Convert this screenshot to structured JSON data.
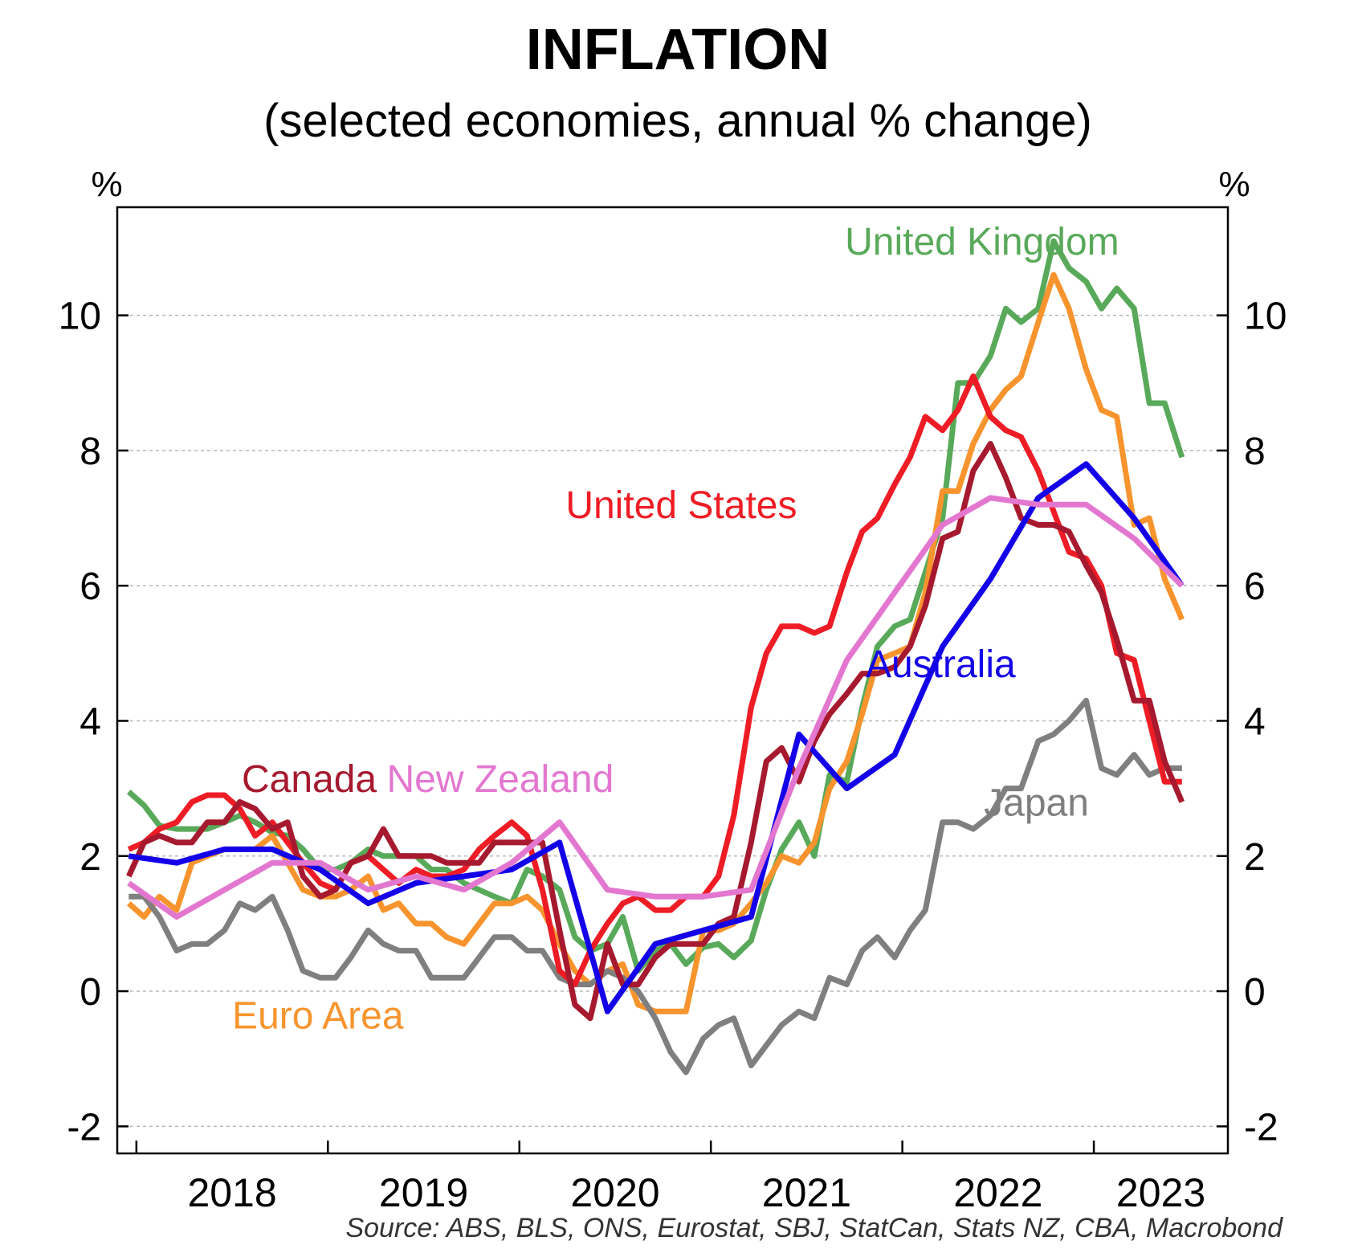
{
  "chart_data": {
    "type": "line",
    "title": "INFLATION",
    "subtitle": "(selected economies, annual % change)",
    "ylabel_left": "%",
    "ylabel_right": "%",
    "ylim": [
      -2.4,
      11.6
    ],
    "yticks": [
      -2,
      0,
      2,
      4,
      6,
      8,
      10
    ],
    "xlim": [
      2017.9,
      2023.7
    ],
    "xticks": [
      2018,
      2019,
      2020,
      2021,
      2022,
      2023
    ],
    "xtick_labels": [
      "2018",
      "2019",
      "2020",
      "2021",
      "2022",
      "2023"
    ],
    "source": "Source: ABS, BLS, ONS, Eurostat, SBJ, StatCan, Stats NZ, CBA, Macrobond",
    "grid": "horizontal dashed",
    "series": [
      {
        "name": "United Kingdom",
        "color": "#59a95a",
        "label_pos": [
          2021.7,
          10.9
        ],
        "label_anchor": "start",
        "x": [
          2017.96,
          2018.04,
          2018.12,
          2018.21,
          2018.29,
          2018.37,
          2018.46,
          2018.54,
          2018.62,
          2018.71,
          2018.79,
          2018.87,
          2018.96,
          2019.04,
          2019.12,
          2019.21,
          2019.29,
          2019.37,
          2019.46,
          2019.54,
          2019.62,
          2019.71,
          2019.79,
          2019.87,
          2019.96,
          2020.04,
          2020.12,
          2020.21,
          2020.29,
          2020.37,
          2020.46,
          2020.54,
          2020.62,
          2020.71,
          2020.79,
          2020.87,
          2020.96,
          2021.04,
          2021.12,
          2021.21,
          2021.29,
          2021.37,
          2021.46,
          2021.54,
          2021.62,
          2021.71,
          2021.79,
          2021.87,
          2021.96,
          2022.04,
          2022.12,
          2022.21,
          2022.29,
          2022.37,
          2022.46,
          2022.54,
          2022.62,
          2022.71,
          2022.79,
          2022.87,
          2022.96,
          2023.04,
          2023.12,
          2023.21,
          2023.29,
          2023.37,
          2023.46
        ],
        "y": [
          2.95,
          2.75,
          2.45,
          2.4,
          2.4,
          2.4,
          2.5,
          2.6,
          2.5,
          2.35,
          2.3,
          2.1,
          1.8,
          1.8,
          1.9,
          2.1,
          2.0,
          2.0,
          2.0,
          1.8,
          1.8,
          1.6,
          1.5,
          1.4,
          1.3,
          1.8,
          1.7,
          1.5,
          0.8,
          0.6,
          0.7,
          1.1,
          0.3,
          0.6,
          0.7,
          0.4,
          0.65,
          0.7,
          0.5,
          0.75,
          1.5,
          2.1,
          2.5,
          2.0,
          3.2,
          3.1,
          4.2,
          5.1,
          5.4,
          5.5,
          6.2,
          7.0,
          9.0,
          9.0,
          9.4,
          10.1,
          9.9,
          10.1,
          11.1,
          10.7,
          10.5,
          10.1,
          10.4,
          10.1,
          8.7,
          8.7,
          7.9
        ]
      },
      {
        "name": "Euro Area",
        "color": "#f7942e",
        "label_pos": [
          2018.5,
          -0.55
        ],
        "label_anchor": "start",
        "x": [
          2017.96,
          2018.04,
          2018.12,
          2018.21,
          2018.29,
          2018.37,
          2018.46,
          2018.54,
          2018.62,
          2018.71,
          2018.79,
          2018.87,
          2018.96,
          2019.04,
          2019.12,
          2019.21,
          2019.29,
          2019.37,
          2019.46,
          2019.54,
          2019.62,
          2019.71,
          2019.79,
          2019.87,
          2019.96,
          2020.04,
          2020.12,
          2020.21,
          2020.29,
          2020.37,
          2020.46,
          2020.54,
          2020.62,
          2020.71,
          2020.79,
          2020.87,
          2020.96,
          2021.04,
          2021.12,
          2021.21,
          2021.29,
          2021.37,
          2021.46,
          2021.54,
          2021.62,
          2021.71,
          2021.79,
          2021.87,
          2021.96,
          2022.04,
          2022.12,
          2022.21,
          2022.29,
          2022.37,
          2022.46,
          2022.54,
          2022.62,
          2022.71,
          2022.79,
          2022.87,
          2022.96,
          2023.04,
          2023.12,
          2023.21,
          2023.29,
          2023.37,
          2023.46
        ],
        "y": [
          1.3,
          1.1,
          1.4,
          1.2,
          1.9,
          2.0,
          2.1,
          2.1,
          2.1,
          2.3,
          1.9,
          1.5,
          1.4,
          1.4,
          1.5,
          1.7,
          1.2,
          1.3,
          1.0,
          1.0,
          0.8,
          0.7,
          1.0,
          1.3,
          1.3,
          1.4,
          1.2,
          0.7,
          0.3,
          0.1,
          0.3,
          0.4,
          -0.2,
          -0.3,
          -0.3,
          -0.3,
          0.9,
          0.9,
          1.0,
          1.3,
          1.6,
          2.0,
          1.9,
          2.2,
          3.0,
          3.4,
          4.1,
          4.9,
          5.0,
          5.1,
          5.9,
          7.4,
          7.4,
          8.1,
          8.6,
          8.9,
          9.1,
          9.9,
          10.6,
          10.1,
          9.2,
          8.6,
          8.5,
          6.9,
          7.0,
          6.1,
          5.5
        ]
      },
      {
        "name": "Japan",
        "color": "#7f7f7f",
        "label_pos": [
          2022.7,
          2.6
        ],
        "label_anchor": "middle",
        "x": [
          2017.96,
          2018.04,
          2018.12,
          2018.21,
          2018.29,
          2018.37,
          2018.46,
          2018.54,
          2018.62,
          2018.71,
          2018.79,
          2018.87,
          2018.96,
          2019.04,
          2019.12,
          2019.21,
          2019.29,
          2019.37,
          2019.46,
          2019.54,
          2019.62,
          2019.71,
          2019.79,
          2019.87,
          2019.96,
          2020.04,
          2020.12,
          2020.21,
          2020.29,
          2020.37,
          2020.46,
          2020.54,
          2020.62,
          2020.71,
          2020.79,
          2020.87,
          2020.96,
          2021.04,
          2021.12,
          2021.21,
          2021.29,
          2021.37,
          2021.46,
          2021.54,
          2021.62,
          2021.71,
          2021.79,
          2021.87,
          2021.96,
          2022.04,
          2022.12,
          2022.21,
          2022.29,
          2022.37,
          2022.46,
          2022.54,
          2022.62,
          2022.71,
          2022.79,
          2022.87,
          2022.96,
          2023.04,
          2023.12,
          2023.21,
          2023.29,
          2023.37,
          2023.46
        ],
        "y": [
          1.4,
          1.4,
          1.1,
          0.6,
          0.7,
          0.7,
          0.9,
          1.3,
          1.2,
          1.4,
          0.9,
          0.3,
          0.2,
          0.2,
          0.5,
          0.9,
          0.7,
          0.6,
          0.6,
          0.2,
          0.2,
          0.2,
          0.5,
          0.8,
          0.8,
          0.6,
          0.6,
          0.2,
          0.1,
          0.1,
          0.3,
          0.2,
          0.0,
          -0.4,
          -0.9,
          -1.2,
          -0.7,
          -0.5,
          -0.4,
          -1.1,
          -0.8,
          -0.5,
          -0.3,
          -0.4,
          0.2,
          0.1,
          0.6,
          0.8,
          0.5,
          0.9,
          1.2,
          2.5,
          2.5,
          2.4,
          2.6,
          3.0,
          3.0,
          3.7,
          3.8,
          4.0,
          4.3,
          3.3,
          3.2,
          3.5,
          3.2,
          3.3,
          3.3
        ]
      },
      {
        "name": "United States",
        "color": "#ee1c25",
        "label_pos": [
          2021.45,
          7.0
        ],
        "label_anchor": "end",
        "x": [
          2017.96,
          2018.04,
          2018.12,
          2018.21,
          2018.29,
          2018.37,
          2018.46,
          2018.54,
          2018.62,
          2018.71,
          2018.79,
          2018.87,
          2018.96,
          2019.04,
          2019.12,
          2019.21,
          2019.29,
          2019.37,
          2019.46,
          2019.54,
          2019.62,
          2019.71,
          2019.79,
          2019.87,
          2019.96,
          2020.04,
          2020.12,
          2020.21,
          2020.29,
          2020.37,
          2020.46,
          2020.54,
          2020.62,
          2020.71,
          2020.79,
          2020.87,
          2020.96,
          2021.04,
          2021.12,
          2021.21,
          2021.29,
          2021.37,
          2021.46,
          2021.54,
          2021.62,
          2021.71,
          2021.79,
          2021.87,
          2021.96,
          2022.04,
          2022.12,
          2022.21,
          2022.29,
          2022.37,
          2022.46,
          2022.54,
          2022.62,
          2022.71,
          2022.79,
          2022.87,
          2022.96,
          2023.04,
          2023.12,
          2023.21,
          2023.29,
          2023.37,
          2023.46
        ],
        "y": [
          2.1,
          2.2,
          2.4,
          2.5,
          2.8,
          2.9,
          2.9,
          2.7,
          2.3,
          2.5,
          2.2,
          1.9,
          1.6,
          1.5,
          1.9,
          2.0,
          1.8,
          1.6,
          1.8,
          1.7,
          1.7,
          1.8,
          2.1,
          2.3,
          2.5,
          2.3,
          1.5,
          0.3,
          0.1,
          0.6,
          1.0,
          1.3,
          1.4,
          1.2,
          1.2,
          1.4,
          1.4,
          1.7,
          2.6,
          4.2,
          5.0,
          5.4,
          5.4,
          5.3,
          5.4,
          6.2,
          6.8,
          7.0,
          7.5,
          7.9,
          8.5,
          8.3,
          8.6,
          9.1,
          8.5,
          8.3,
          8.2,
          7.7,
          7.1,
          6.5,
          6.4,
          6.0,
          5.0,
          4.9,
          4.0,
          3.1,
          3.1
        ]
      },
      {
        "name": "Canada",
        "color": "#a6192e",
        "label_pos": [
          2018.55,
          2.95
        ],
        "label_anchor": "start",
        "x": [
          2017.96,
          2018.04,
          2018.12,
          2018.21,
          2018.29,
          2018.37,
          2018.46,
          2018.54,
          2018.62,
          2018.71,
          2018.79,
          2018.87,
          2018.96,
          2019.04,
          2019.12,
          2019.21,
          2019.29,
          2019.37,
          2019.46,
          2019.54,
          2019.62,
          2019.71,
          2019.79,
          2019.87,
          2019.96,
          2020.04,
          2020.12,
          2020.21,
          2020.29,
          2020.37,
          2020.46,
          2020.54,
          2020.62,
          2020.71,
          2020.79,
          2020.87,
          2020.96,
          2021.04,
          2021.12,
          2021.21,
          2021.29,
          2021.37,
          2021.46,
          2021.54,
          2021.62,
          2021.71,
          2021.79,
          2021.87,
          2021.96,
          2022.04,
          2022.12,
          2022.21,
          2022.29,
          2022.37,
          2022.46,
          2022.54,
          2022.62,
          2022.71,
          2022.79,
          2022.87,
          2022.96,
          2023.04,
          2023.12,
          2023.21,
          2023.29,
          2023.37,
          2023.46
        ],
        "y": [
          1.7,
          2.2,
          2.3,
          2.2,
          2.2,
          2.5,
          2.5,
          2.8,
          2.7,
          2.4,
          2.5,
          1.7,
          1.4,
          1.5,
          1.9,
          2.0,
          2.4,
          2.0,
          2.0,
          2.0,
          1.9,
          1.9,
          1.9,
          2.2,
          2.2,
          2.2,
          2.2,
          0.9,
          -0.2,
          -0.4,
          0.7,
          0.1,
          0.1,
          0.5,
          0.7,
          0.7,
          0.7,
          1.0,
          1.1,
          2.2,
          3.4,
          3.6,
          3.1,
          3.7,
          4.1,
          4.4,
          4.7,
          4.7,
          4.8,
          5.1,
          5.7,
          6.7,
          6.8,
          7.7,
          8.1,
          7.6,
          7.0,
          6.9,
          6.9,
          6.8,
          6.3,
          5.9,
          5.2,
          4.3,
          4.3,
          3.4,
          2.8
        ]
      },
      {
        "name": "Australia",
        "color": "#1400e8",
        "label_pos": [
          2022.2,
          4.65
        ],
        "label_anchor": "middle",
        "x": [
          2017.96,
          2018.21,
          2018.46,
          2018.71,
          2018.96,
          2019.21,
          2019.46,
          2019.71,
          2019.96,
          2020.21,
          2020.46,
          2020.71,
          2020.96,
          2021.21,
          2021.46,
          2021.71,
          2021.96,
          2022.21,
          2022.46,
          2022.71,
          2022.96,
          2023.21,
          2023.46
        ],
        "y": [
          2.0,
          1.9,
          2.1,
          2.1,
          1.8,
          1.3,
          1.6,
          1.7,
          1.8,
          2.2,
          -0.3,
          0.7,
          0.9,
          1.1,
          3.8,
          3.0,
          3.5,
          5.1,
          6.1,
          7.3,
          7.8,
          7.0,
          6.0
        ]
      },
      {
        "name": "New Zealand",
        "color": "#e377d0",
        "label_pos": [
          2019.9,
          2.95
        ],
        "label_anchor": "middle",
        "x": [
          2017.96,
          2018.21,
          2018.46,
          2018.71,
          2018.96,
          2019.21,
          2019.46,
          2019.71,
          2019.96,
          2020.21,
          2020.46,
          2020.71,
          2020.96,
          2021.21,
          2021.46,
          2021.71,
          2021.96,
          2022.21,
          2022.46,
          2022.71,
          2022.96,
          2023.21,
          2023.46
        ],
        "y": [
          1.6,
          1.1,
          1.5,
          1.9,
          1.9,
          1.5,
          1.7,
          1.5,
          1.9,
          2.5,
          1.5,
          1.4,
          1.4,
          1.5,
          3.3,
          4.9,
          5.9,
          6.9,
          7.3,
          7.2,
          7.2,
          6.7,
          6.0
        ]
      }
    ]
  }
}
